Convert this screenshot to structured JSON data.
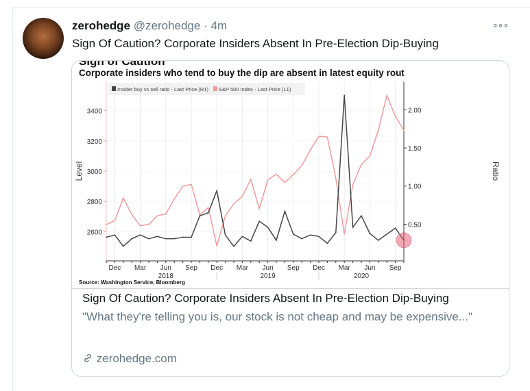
{
  "tweet": {
    "name": "zerohedge",
    "handle": "@zerohedge",
    "separator": "·",
    "time": "4m",
    "more_icon": "more-horizontal-icon",
    "text": "Sign Of Caution? Corporate Insiders Absent In Pre-Election Dip-Buying"
  },
  "card": {
    "title": "Sign Of Caution? Corporate Insiders Absent In Pre-Election Dip-Buying",
    "description": "\"What they're telling you is, our stock is not cheap and may be expensive...\"",
    "link_icon": "link-icon",
    "domain": "zerohedge.com"
  },
  "chart_data": {
    "type": "line",
    "title": "Sign of Caution",
    "subtitle": "Corporate insiders who tend to buy the dip are absent in latest equity rout",
    "source": "Source: Washington Service, Bloomberg",
    "ylabel": "Level",
    "y2label": "Ratio",
    "x": [
      "2017-11",
      "2017-12",
      "2018-01",
      "2018-02",
      "2018-03",
      "2018-04",
      "2018-05",
      "2018-06",
      "2018-07",
      "2018-08",
      "2018-09",
      "2018-10",
      "2018-11",
      "2018-12",
      "2019-01",
      "2019-02",
      "2019-03",
      "2019-04",
      "2019-05",
      "2019-06",
      "2019-07",
      "2019-08",
      "2019-09",
      "2019-10",
      "2019-11",
      "2019-12",
      "2020-01",
      "2020-02",
      "2020-03",
      "2020-04",
      "2020-05",
      "2020-06",
      "2020-07",
      "2020-08",
      "2020-09",
      "2020-10"
    ],
    "x_tick_labels": [
      {
        "month": "2017-12",
        "label": "Dec"
      },
      {
        "month": "2018-03",
        "label": "Mar"
      },
      {
        "month": "2018-06",
        "label": "Jun"
      },
      {
        "month": "2018-09",
        "label": "Sep"
      },
      {
        "month": "2018-12",
        "label": "Dec"
      },
      {
        "month": "2019-03",
        "label": "Mar"
      },
      {
        "month": "2019-06",
        "label": "Jun"
      },
      {
        "month": "2019-09",
        "label": "Sep"
      },
      {
        "month": "2019-12",
        "label": "Dec"
      },
      {
        "month": "2020-03",
        "label": "Mar"
      },
      {
        "month": "2020-06",
        "label": "Jun"
      },
      {
        "month": "2020-09",
        "label": "Sep"
      }
    ],
    "year_labels": [
      {
        "month": "2018-06",
        "label": "2018"
      },
      {
        "month": "2019-06",
        "label": "2019"
      },
      {
        "month": "2020-05",
        "label": "2020"
      }
    ],
    "ylim": [
      2407,
      3593
    ],
    "y2lim": [
      0.02,
      2.37
    ],
    "y_ticks": [
      2600,
      2800,
      3000,
      3200,
      3400
    ],
    "y2_ticks": [
      "0.50",
      "1.00",
      "1.50",
      "2.00"
    ],
    "grid": true,
    "legend_position": "top-left",
    "series": [
      {
        "name": "Insider buy vs sell ratio - Last Price (R1)",
        "axis": "right",
        "color": "#444444",
        "values": [
          0.33,
          0.36,
          0.21,
          0.31,
          0.36,
          0.31,
          0.34,
          0.31,
          0.31,
          0.33,
          0.33,
          0.61,
          0.65,
          0.94,
          0.36,
          0.21,
          0.34,
          0.28,
          0.54,
          0.46,
          0.29,
          0.67,
          0.37,
          0.31,
          0.36,
          0.34,
          0.25,
          0.39,
          2.19,
          0.46,
          0.61,
          0.38,
          0.29,
          0.37,
          0.45,
          0.29
        ]
      },
      {
        "name": "S&P 500 Index - Last Price (L1)",
        "axis": "left",
        "color": "#f49a9a",
        "values": [
          2647,
          2673,
          2823,
          2713,
          2640,
          2648,
          2705,
          2718,
          2816,
          2901,
          2913,
          2711,
          2760,
          2506,
          2704,
          2784,
          2834,
          2946,
          2752,
          2942,
          2980,
          2926,
          2977,
          3038,
          3141,
          3231,
          3226,
          2954,
          2585,
          2912,
          3044,
          3100,
          3271,
          3500,
          3363,
          3270
        ]
      }
    ],
    "highlight_color": "#e8546e"
  }
}
